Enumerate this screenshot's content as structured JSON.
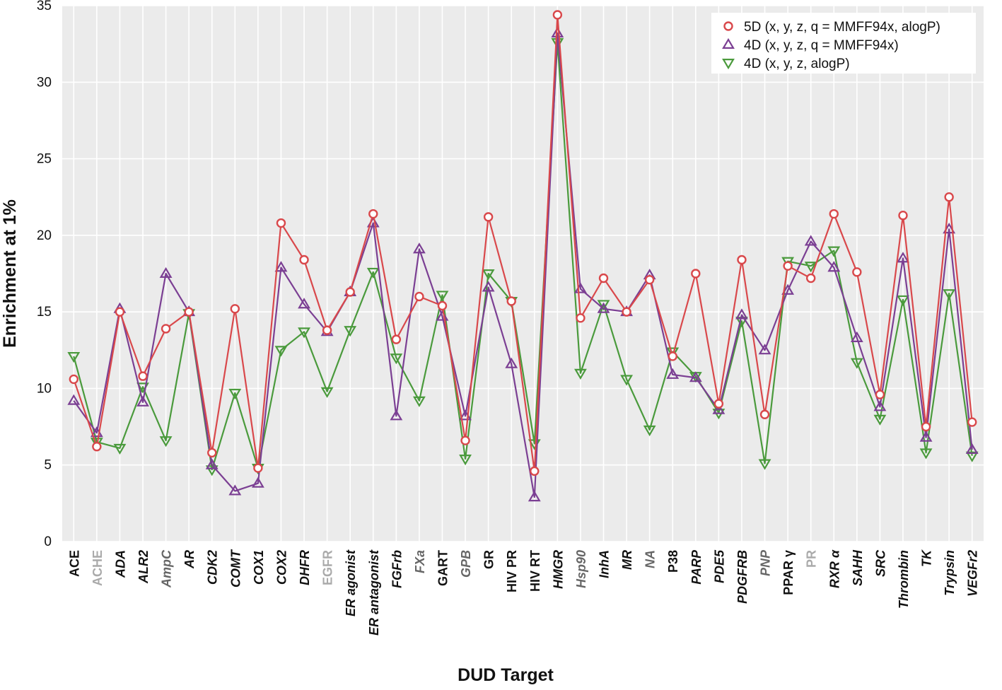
{
  "chart_data": {
    "type": "line",
    "xlabel": "DUD Target",
    "ylabel": "Enrichment at 1%",
    "ylim": [
      0,
      35
    ],
    "yticks": [
      "0",
      "5",
      "10",
      "15",
      "20",
      "25",
      "30",
      "35"
    ],
    "grid": true,
    "legend_position": "top-right",
    "categories": [
      "ACE",
      "ACHE",
      "ADA",
      "ALR2",
      "AmpC",
      "AR",
      "CDK2",
      "COMT",
      "COX1",
      "COX2",
      "DHFR",
      "EGFR",
      "ER agonist",
      "ER antagonist",
      "FGFrb",
      "FXa",
      "GART",
      "GPB",
      "GR",
      "HIV PR",
      "HIV RT",
      "HMGR",
      "Hsp90",
      "InhA",
      "MR",
      "NA",
      "P38",
      "PARP",
      "PDE5",
      "PDGFRB",
      "PNP",
      "PPAR γ",
      "PR",
      "RXR α",
      "SAHH",
      "SRC",
      "Thrombin",
      "TK",
      "Trypsin",
      "VEGFr2"
    ],
    "category_styles": [
      {
        "italic": false,
        "color": "#111111"
      },
      {
        "italic": false,
        "color": "#aaaaaa"
      },
      {
        "italic": true,
        "color": "#111111"
      },
      {
        "italic": true,
        "color": "#111111"
      },
      {
        "italic": true,
        "color": "#666666"
      },
      {
        "italic": true,
        "color": "#111111"
      },
      {
        "italic": true,
        "color": "#111111"
      },
      {
        "italic": true,
        "color": "#111111"
      },
      {
        "italic": true,
        "color": "#111111"
      },
      {
        "italic": true,
        "color": "#111111"
      },
      {
        "italic": true,
        "color": "#111111"
      },
      {
        "italic": false,
        "color": "#aaaaaa"
      },
      {
        "italic": true,
        "color": "#111111"
      },
      {
        "italic": true,
        "color": "#111111"
      },
      {
        "italic": true,
        "color": "#111111"
      },
      {
        "italic": true,
        "color": "#666666"
      },
      {
        "italic": false,
        "color": "#111111"
      },
      {
        "italic": true,
        "color": "#666666"
      },
      {
        "italic": false,
        "color": "#111111"
      },
      {
        "italic": false,
        "color": "#111111"
      },
      {
        "italic": false,
        "color": "#111111"
      },
      {
        "italic": true,
        "color": "#111111"
      },
      {
        "italic": true,
        "color": "#666666"
      },
      {
        "italic": true,
        "color": "#111111"
      },
      {
        "italic": true,
        "color": "#111111"
      },
      {
        "italic": true,
        "color": "#666666"
      },
      {
        "italic": false,
        "color": "#111111"
      },
      {
        "italic": true,
        "color": "#111111"
      },
      {
        "italic": true,
        "color": "#111111"
      },
      {
        "italic": true,
        "color": "#111111"
      },
      {
        "italic": true,
        "color": "#666666"
      },
      {
        "italic": false,
        "color": "#111111"
      },
      {
        "italic": false,
        "color": "#aaaaaa"
      },
      {
        "italic": true,
        "color": "#111111"
      },
      {
        "italic": true,
        "color": "#111111"
      },
      {
        "italic": true,
        "color": "#111111"
      },
      {
        "italic": true,
        "color": "#111111"
      },
      {
        "italic": true,
        "color": "#111111"
      },
      {
        "italic": true,
        "color": "#111111"
      },
      {
        "italic": true,
        "color": "#111111"
      }
    ],
    "series": [
      {
        "name": "5D (x, y, z, q = MMFF94x, alogP)",
        "color": "#d9484b",
        "marker": "circle",
        "values": [
          10.6,
          6.2,
          15.0,
          10.8,
          13.9,
          15.0,
          5.8,
          15.2,
          4.8,
          20.8,
          18.4,
          13.8,
          16.3,
          21.4,
          13.2,
          16.0,
          15.4,
          6.6,
          21.2,
          15.7,
          4.6,
          34.4,
          14.6,
          17.2,
          15.0,
          17.1,
          12.1,
          17.5,
          9.0,
          18.4,
          8.3,
          18.0,
          17.2,
          21.4,
          17.6,
          9.6,
          21.3,
          7.5,
          22.5,
          7.8
        ]
      },
      {
        "name": "4D (x, y, z, q = MMFF94x)",
        "color": "#7b3f93",
        "marker": "triangle-up",
        "values": [
          9.2,
          7.1,
          15.2,
          9.1,
          17.5,
          15.0,
          5.0,
          3.3,
          3.8,
          17.9,
          15.5,
          13.7,
          16.3,
          20.8,
          8.2,
          19.1,
          14.7,
          8.2,
          16.6,
          11.6,
          2.9,
          33.2,
          16.5,
          15.2,
          15.0,
          17.4,
          10.9,
          10.7,
          8.6,
          14.8,
          12.5,
          16.4,
          19.6,
          17.9,
          13.3,
          8.8,
          18.5,
          6.8,
          20.4,
          6.0
        ]
      },
      {
        "name": "4D (x, y, z, alogP)",
        "color": "#4a9a3c",
        "marker": "triangle-down",
        "values": [
          12.1,
          6.5,
          6.1,
          10.1,
          6.6,
          14.9,
          4.7,
          9.7,
          4.8,
          12.5,
          13.7,
          9.8,
          13.8,
          17.6,
          12.0,
          9.2,
          16.1,
          5.4,
          17.5,
          15.7,
          6.4,
          32.6,
          11.0,
          15.5,
          10.6,
          7.3,
          12.4,
          10.8,
          8.4,
          14.4,
          5.1,
          18.3,
          18.0,
          19.0,
          11.7,
          8.0,
          15.8,
          5.8,
          16.2,
          5.6
        ]
      }
    ]
  }
}
